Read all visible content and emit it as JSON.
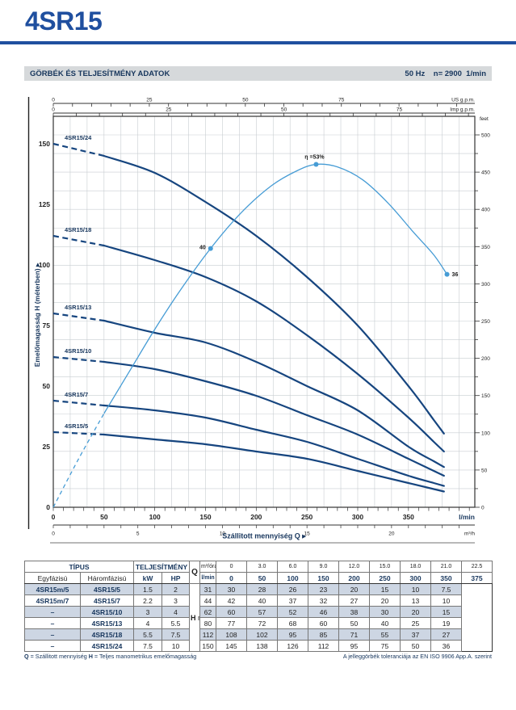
{
  "page": {
    "title": "4SR15"
  },
  "section_bar": {
    "left": "GÖRBÉK ÉS TELJESÍTMÉNY ADATOK",
    "right": "50 Hz    n= 2900  1/min"
  },
  "colors": {
    "brand_blue": "#1f4f9f",
    "curve_navy": "#16457f",
    "efficiency_blue": "#469cd5",
    "grid": "#c8cdd1",
    "bar_bg": "#d6d9db",
    "table_shade": "#cdd6e3",
    "navy_text": "#17365d",
    "dark_text": "#222222"
  },
  "chart_data": {
    "type": "line",
    "title": "",
    "xlabel": "Szállitott mennyiség Q",
    "ylabel": "Emelőmagasság H (méterben)",
    "x_unit_primary": "l/min",
    "xlim_lmin": [
      0,
      415
    ],
    "ylim_m": [
      0,
      161
    ],
    "grid": "on",
    "q_lmin": [
      0,
      50,
      100,
      150,
      200,
      250,
      300,
      350,
      375
    ],
    "series": [
      {
        "name": "4SR15/24",
        "values": [
          150,
          145,
          138,
          126,
          112,
          95,
          75,
          50,
          36
        ],
        "ext_q": 385,
        "ext_h": 30.4
      },
      {
        "name": "4SR15/18",
        "values": [
          112,
          108,
          102,
          95,
          85,
          71,
          55,
          37,
          27
        ],
        "ext_q": 385,
        "ext_h": 23
      },
      {
        "name": "4SR15/13",
        "values": [
          80,
          77,
          72,
          68,
          60,
          50,
          40,
          25,
          19
        ],
        "ext_q": 385,
        "ext_h": 16.6
      },
      {
        "name": "4SR15/10",
        "values": [
          62,
          60,
          57,
          52,
          46,
          38,
          30,
          20,
          15
        ],
        "ext_q": 385,
        "ext_h": 13
      },
      {
        "name": "4SR15/7",
        "values": [
          44,
          42,
          40,
          37,
          32,
          27,
          20,
          13,
          10
        ],
        "ext_q": 385,
        "ext_h": 8.8
      },
      {
        "name": "4SR15/5",
        "values": [
          31,
          30,
          28,
          26,
          23,
          20,
          15,
          10,
          7.5
        ],
        "ext_q": 385,
        "ext_h": 6.5
      }
    ],
    "efficiency_curve": {
      "unit": "%",
      "points_q_eta": [
        [
          0,
          0
        ],
        [
          25,
          7.5
        ],
        [
          50,
          14.5
        ],
        [
          75,
          21
        ],
        [
          100,
          27.5
        ],
        [
          125,
          33.5
        ],
        [
          155,
          40
        ],
        [
          185,
          45.5
        ],
        [
          215,
          49.7
        ],
        [
          240,
          52
        ],
        [
          259,
          53
        ],
        [
          280,
          52.6
        ],
        [
          305,
          50.6
        ],
        [
          330,
          47
        ],
        [
          355,
          42.5
        ],
        [
          375,
          39
        ],
        [
          388,
          36
        ]
      ],
      "markers": [
        {
          "q": 155,
          "eta": 40,
          "label": "40",
          "pos": "left"
        },
        {
          "q": 259,
          "eta": 53,
          "label": "η =53%",
          "pos": "top"
        },
        {
          "q": 388,
          "eta": 36,
          "label": "36",
          "pos": "right"
        }
      ]
    },
    "axes": {
      "top_us": {
        "unit": "US g.p.m.",
        "labels": [
          0,
          25,
          50,
          75
        ],
        "minor_step": 5,
        "lmin_per_unit": 3.7854
      },
      "top_imp": {
        "unit": "Imp g.p.m.",
        "labels": [
          0,
          25,
          50,
          75
        ],
        "minor_step": 5,
        "lmin_per_unit": 4.5461
      },
      "right_ft": {
        "unit": "feet",
        "label_step": 50,
        "minor_step": 25,
        "max": 500
      },
      "bottom_lmin": {
        "unit": "l/min",
        "labels": [
          0,
          50,
          100,
          150,
          200,
          250,
          300,
          350
        ],
        "minor_step": 10,
        "max": 410
      },
      "bottom_m3h": {
        "unit": "m³/h",
        "labels": [
          0,
          5,
          10,
          15,
          20
        ],
        "minor_step": 1,
        "lmin_per_unit": 16.6667
      },
      "left_m_labels": [
        0,
        25,
        50,
        75,
        100,
        125,
        150
      ]
    }
  },
  "table": {
    "tipus_header": "TÍPUS",
    "teljesitmeny_header": "TELJESÍTMÉNY",
    "col_egyfazisu": "Egyfázisú",
    "col_haromfazisu": "Háromfázisú",
    "col_kw": "kW",
    "col_hp": "HP",
    "q_label": "Q",
    "q_unit_row1": "m³/óra",
    "q_unit_row2": "l/min",
    "h_label": "H",
    "h_unit": "m",
    "q_m3h": [
      "0",
      "3.0",
      "6.0",
      "9.0",
      "12.0",
      "15.0",
      "18.0",
      "21.0",
      "22.5"
    ],
    "q_lmin": [
      "0",
      "50",
      "100",
      "150",
      "200",
      "250",
      "300",
      "350",
      "375"
    ],
    "rows": [
      {
        "single": "4SR15m/5",
        "three": "4SR15/5",
        "kw": "1.5",
        "hp": "2",
        "shaded": true
      },
      {
        "single": "4SR15m/7",
        "three": "4SR15/7",
        "kw": "2.2",
        "hp": "3",
        "shaded": false
      },
      {
        "single": "–",
        "three": "4SR15/10",
        "kw": "3",
        "hp": "4",
        "shaded": true
      },
      {
        "single": "–",
        "three": "4SR15/13",
        "kw": "4",
        "hp": "5.5",
        "shaded": false
      },
      {
        "single": "–",
        "three": "4SR15/18",
        "kw": "5.5",
        "hp": "7.5",
        "shaded": true
      },
      {
        "single": "–",
        "three": "4SR15/24",
        "kw": "7.5",
        "hp": "10",
        "shaded": false
      }
    ]
  },
  "footnote": {
    "q_symbol": "Q",
    "q_text": " = Szállitott mennyiség   ",
    "h_symbol": "H",
    "h_text": " = Teljes manometrikus emelőmagasság",
    "right": "A jelleggörbék toleranciája az EN ISO 9906 App.A. szerint"
  }
}
